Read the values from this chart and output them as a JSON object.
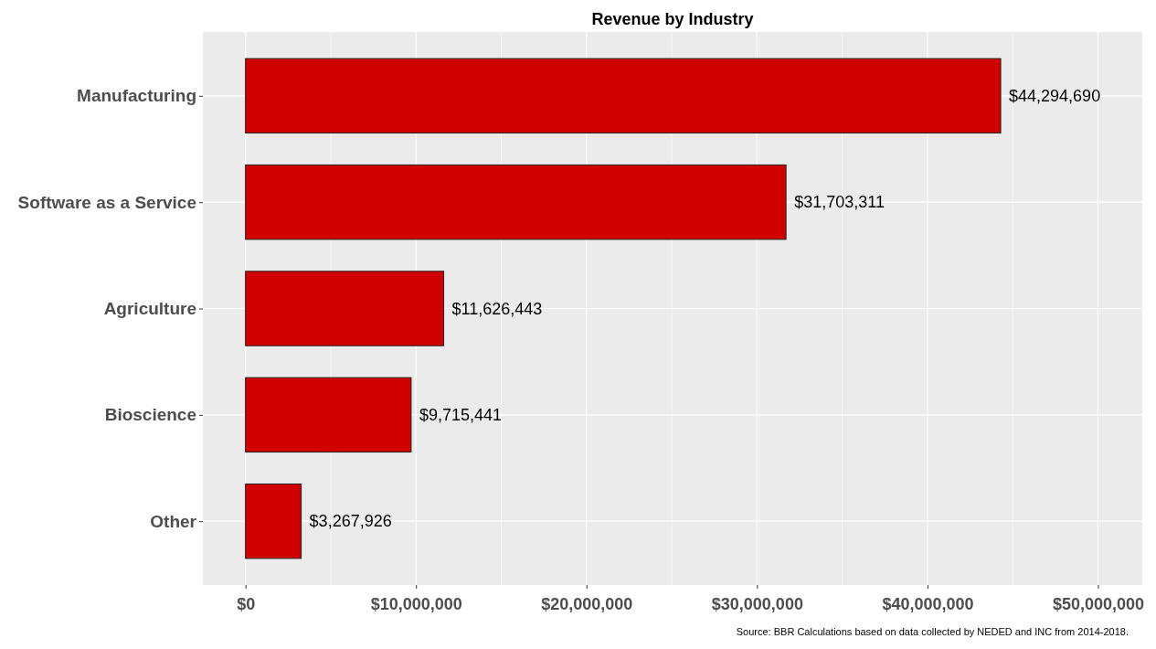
{
  "chart_data": {
    "type": "bar",
    "orientation": "horizontal",
    "title": "Revenue by Industry",
    "categories": [
      "Manufacturing",
      "Software as a Service",
      "Agriculture",
      "Bioscience",
      "Other"
    ],
    "values": [
      44294690,
      31703311,
      11626443,
      9715441,
      3267926
    ],
    "value_labels": [
      "$44,294,690",
      "$31,703,311",
      "$11,626,443",
      "$9,715,441",
      "$3,267,926"
    ],
    "color": "#d10000",
    "xlim": [
      -2500000,
      52600000
    ],
    "xticks": [
      {
        "value": 0,
        "label": "$0"
      },
      {
        "value": 10000000,
        "label": "$10,000,000"
      },
      {
        "value": 20000000,
        "label": "$20,000,000"
      },
      {
        "value": 30000000,
        "label": "$30,000,000"
      },
      {
        "value": 40000000,
        "label": "$40,000,000"
      },
      {
        "value": 50000000,
        "label": "$50,000,000"
      }
    ],
    "grid": true,
    "annotations": [
      "Source: BBR Calculations based on data collected by NEDED and INC from 2014-2018."
    ]
  }
}
